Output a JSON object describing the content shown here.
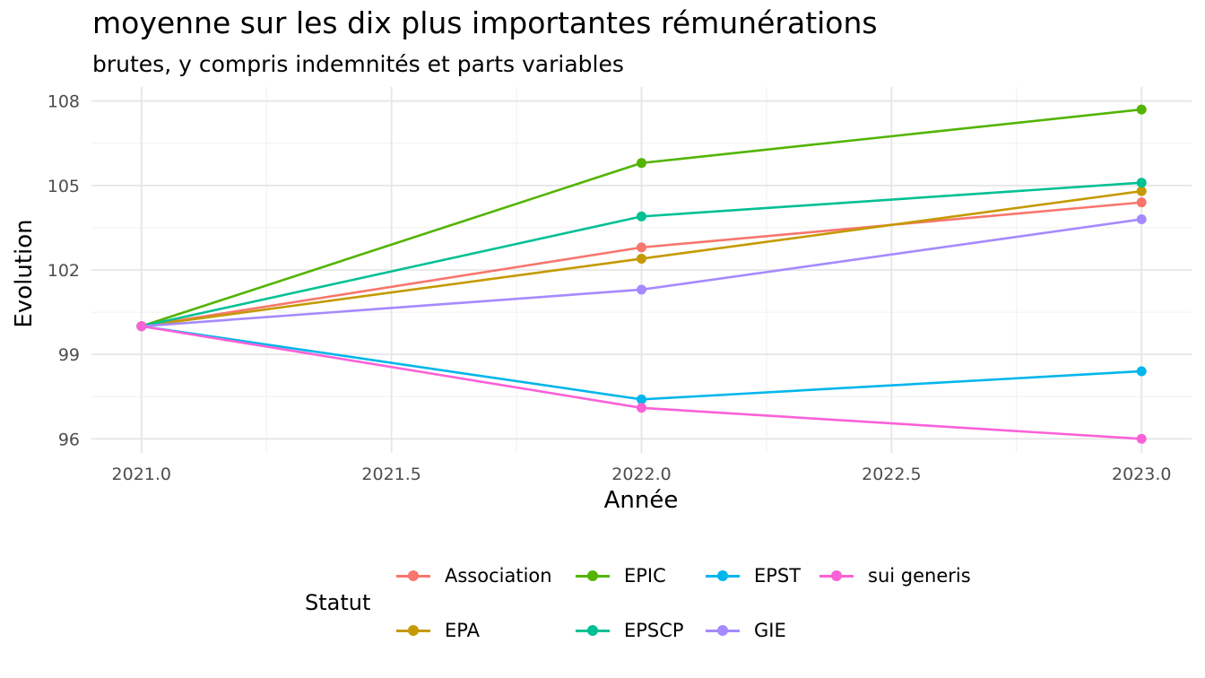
{
  "chart_data": {
    "type": "line",
    "title": "moyenne sur les dix plus importantes rémunérations",
    "subtitle": "brutes, y compris indemnités et parts variables",
    "xlabel": "Année",
    "ylabel": "Evolution",
    "x": [
      2021,
      2022,
      2023
    ],
    "xlim": [
      2020.9,
      2023.1
    ],
    "ylim": [
      95.5,
      108.5
    ],
    "x_ticks": [
      2021.0,
      2021.5,
      2022.0,
      2022.5,
      2023.0
    ],
    "x_tick_labels": [
      "2021.0",
      "2021.5",
      "2022.0",
      "2022.5",
      "2023.0"
    ],
    "y_ticks": [
      96,
      99,
      102,
      105,
      108
    ],
    "y_tick_labels": [
      "96",
      "99",
      "102",
      "105",
      "108"
    ],
    "grid": true,
    "legend_title": "Statut",
    "legend_position": "bottom",
    "series": [
      {
        "name": "Association",
        "color": "#F8766D",
        "values": [
          100,
          102.8,
          104.4
        ]
      },
      {
        "name": "EPA",
        "color": "#C49A00",
        "values": [
          100,
          102.4,
          104.8
        ]
      },
      {
        "name": "EPIC",
        "color": "#53B400",
        "values": [
          100,
          105.8,
          107.7
        ]
      },
      {
        "name": "EPSCP",
        "color": "#00C094",
        "values": [
          100,
          103.9,
          105.1
        ]
      },
      {
        "name": "EPST",
        "color": "#00B6EB",
        "values": [
          100,
          97.4,
          98.4
        ]
      },
      {
        "name": "GIE",
        "color": "#A58AFF",
        "values": [
          100,
          101.3,
          103.8
        ]
      },
      {
        "name": "sui generis",
        "color": "#FB61D7",
        "values": [
          100,
          97.1,
          96.0
        ]
      }
    ]
  }
}
